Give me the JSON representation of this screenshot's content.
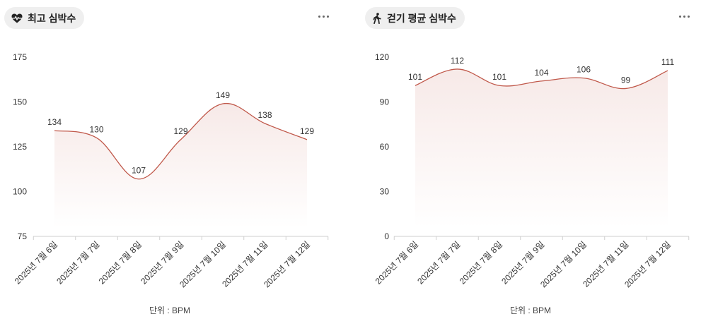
{
  "chart_data": [
    {
      "type": "area",
      "title": "최고 심박수",
      "icon": "heart-pulse-icon",
      "categories": [
        "2025년 7월 6일",
        "2025년 7월 7일",
        "2025년 7월 8일",
        "2025년 7월 9일",
        "2025년 7월 10일",
        "2025년 7월 11일",
        "2025년 7월 12일"
      ],
      "values": [
        134,
        130,
        107,
        129,
        149,
        138,
        129
      ],
      "yticks": [
        "75",
        "100",
        "125",
        "150",
        "175"
      ],
      "ylim": [
        75,
        175
      ],
      "unit_label": "단위 : BPM",
      "line_color": "#c0584a",
      "grid": false
    },
    {
      "type": "area",
      "title": "걷기 평균 심박수",
      "icon": "walking-icon",
      "categories": [
        "2025년 7월 6일",
        "2025년 7월 7일",
        "2025년 7월 8일",
        "2025년 7월 9일",
        "2025년 7월 10일",
        "2025년 7월 11일",
        "2025년 7월 12일"
      ],
      "values": [
        101,
        112,
        101,
        104,
        106,
        99,
        111
      ],
      "yticks": [
        "0",
        "30",
        "60",
        "90",
        "120"
      ],
      "ylim": [
        0,
        120
      ],
      "unit_label": "단위 : BPM",
      "line_color": "#c0584a",
      "grid": false
    }
  ]
}
